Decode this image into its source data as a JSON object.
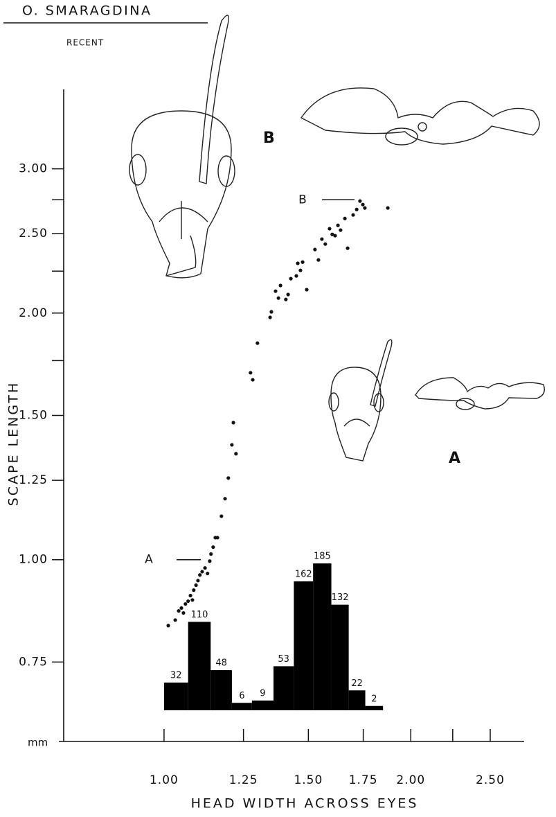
{
  "chart_data": {
    "type": "scatter",
    "title": "O. SMARAGDINA",
    "subtitle": "RECENT",
    "x_label": "HEAD WIDTH ACROSS EYES",
    "y_label": "SCAPE LENGTH",
    "unit_label": "mm",
    "log_x": true,
    "log_y": true,
    "color": "#111111",
    "xlim": [
      0.75,
      2.75
    ],
    "ylim": [
      0.6,
      3.75
    ],
    "xticks": [
      {
        "value": 1,
        "label": "1.00"
      },
      {
        "value": 1.25,
        "label": "1.25"
      },
      {
        "value": 1.5,
        "label": "1.50"
      },
      {
        "value": 1.75,
        "label": "1.75"
      },
      {
        "value": 2,
        "label": "2.00"
      },
      {
        "value": 2.5,
        "label": "2.50"
      }
    ],
    "x_minor_ticks": [
      2.25
    ],
    "yticks": [
      {
        "value": 0.75,
        "label": "0.75"
      },
      {
        "value": 1,
        "label": "1.00"
      },
      {
        "value": 1.25,
        "label": "1.25"
      },
      {
        "value": 1.5,
        "label": "1.50"
      },
      {
        "value": 2,
        "label": "2.00"
      },
      {
        "value": 2.5,
        "label": "2.50"
      },
      {
        "value": 3,
        "label": "3.00"
      }
    ],
    "y_minor_ticks": [
      1.75,
      2.25,
      2.75
    ],
    "x": [
      1.012,
      1.032,
      1.042,
      1.05,
      1.056,
      1.062,
      1.07,
      1.077,
      1.083,
      1.087,
      1.094,
      1.1,
      1.106,
      1.113,
      1.122,
      1.13,
      1.137,
      1.141,
      1.148,
      1.155,
      1.162,
      1.175,
      1.187,
      1.198,
      1.21,
      1.215,
      1.224,
      1.275,
      1.283,
      1.3,
      1.347,
      1.352,
      1.368,
      1.379,
      1.387,
      1.408,
      1.417,
      1.428,
      1.45,
      1.456,
      1.467,
      1.476,
      1.493,
      1.528,
      1.543,
      1.558,
      1.573,
      1.592,
      1.604,
      1.617,
      1.63,
      1.642,
      1.662,
      1.675,
      1.701,
      1.718,
      1.734,
      1.748,
      1.758,
      1.875
    ],
    "values": [
      0.831,
      0.844,
      0.866,
      0.873,
      0.861,
      0.883,
      0.89,
      0.904,
      0.893,
      0.918,
      0.931,
      0.943,
      0.958,
      0.967,
      0.977,
      0.962,
      0.996,
      1.016,
      1.036,
      1.064,
      1.064,
      1.13,
      1.187,
      1.258,
      1.381,
      1.47,
      1.347,
      1.691,
      1.658,
      1.838,
      1.976,
      2.007,
      2.127,
      2.086,
      2.161,
      2.078,
      2.107,
      2.203,
      2.22,
      2.3,
      2.255,
      2.308,
      2.136,
      2.391,
      2.322,
      2.462,
      2.428,
      2.535,
      2.495,
      2.486,
      2.559,
      2.525,
      2.609,
      2.4,
      2.635,
      2.676,
      2.74,
      2.713,
      2.687,
      2.687
    ],
    "annotations": [
      {
        "text": "A",
        "y": 1.0
      },
      {
        "text": "B",
        "y": 2.75
      }
    ],
    "drawing_labels": [
      "B",
      "A"
    ],
    "histogram": {
      "type": "histogram",
      "color": "#000000",
      "bins": [
        1.0,
        1.07,
        1.14,
        1.21,
        1.28,
        1.36,
        1.44,
        1.52,
        1.6,
        1.68,
        1.76,
        1.85
      ],
      "values": [
        32,
        110,
        48,
        6,
        9,
        53,
        162,
        185,
        132,
        22,
        2
      ]
    }
  }
}
